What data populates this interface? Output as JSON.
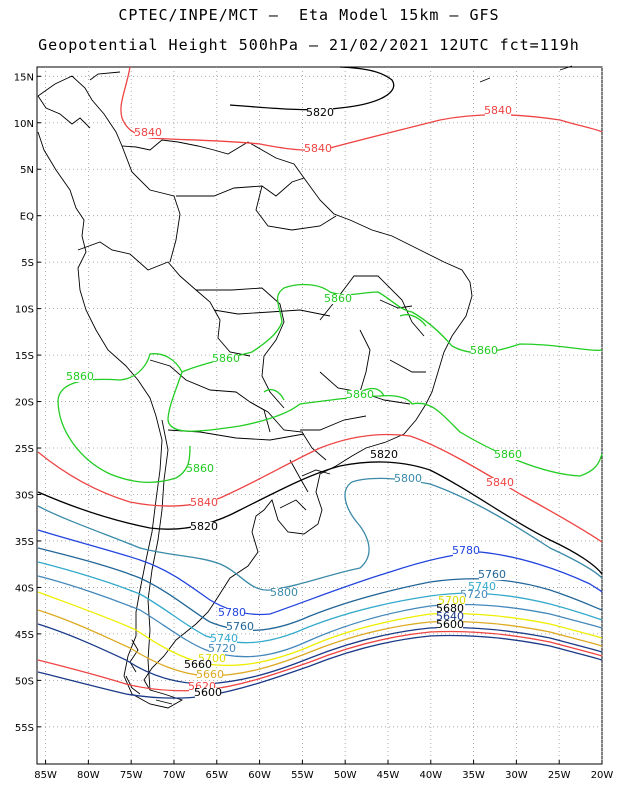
{
  "header": {
    "line1": "CPTEC/INPE/MCT –  Eta Model 15km – GFS",
    "line2": "Geopotential Height 500hPa – 21/02/2021 12UTC fct=119h"
  },
  "map": {
    "lon_range": [
      -86,
      -20
    ],
    "lat_range": [
      -59,
      16
    ],
    "lat_ticks": [
      "15N",
      "10N",
      "5N",
      "EQ",
      "5S",
      "10S",
      "15S",
      "20S",
      "25S",
      "30S",
      "35S",
      "40S",
      "45S",
      "50S",
      "55S"
    ],
    "lon_ticks": [
      "85W",
      "80W",
      "75W",
      "70W",
      "65W",
      "60W",
      "55W",
      "50W",
      "45W",
      "40W",
      "35W",
      "30W",
      "25W",
      "20W"
    ],
    "grid": "dotted"
  },
  "contours": [
    {
      "value": 5860,
      "color": "#22cc22"
    },
    {
      "value": 5840,
      "color": "#ee4444"
    },
    {
      "value": 5820,
      "color": "#000000"
    },
    {
      "value": 5800,
      "color": "#3a8aa8"
    },
    {
      "value": 5780,
      "color": "#2244dd"
    },
    {
      "value": 5760,
      "color": "#226699"
    },
    {
      "value": 5740,
      "color": "#33aacc"
    },
    {
      "value": 5720,
      "color": "#4488bb"
    },
    {
      "value": 5700,
      "color": "#eeee00"
    },
    {
      "value": 5680,
      "color": "#ddaa22"
    },
    {
      "value": 5660,
      "color": "#ee4444"
    },
    {
      "value": 5640,
      "color": "#1a3a88"
    }
  ],
  "contour_labels": [
    {
      "text": "5820",
      "color": "#000000"
    },
    {
      "text": "5840",
      "color": "#ee4444"
    },
    {
      "text": "5840",
      "color": "#ee4444"
    },
    {
      "text": "5840",
      "color": "#ee4444"
    },
    {
      "text": "5860",
      "color": "#22cc22"
    },
    {
      "text": "5860",
      "color": "#22cc22"
    },
    {
      "text": "5860",
      "color": "#22cc22"
    },
    {
      "text": "5860",
      "color": "#22cc22"
    },
    {
      "text": "5860",
      "color": "#22cc22"
    },
    {
      "text": "5860",
      "color": "#22cc22"
    },
    {
      "text": "5860",
      "color": "#22cc22"
    },
    {
      "text": "5820",
      "color": "#000000"
    },
    {
      "text": "5820",
      "color": "#000000"
    },
    {
      "text": "5800",
      "color": "#3a8aa8"
    },
    {
      "text": "5800",
      "color": "#3a8aa8"
    },
    {
      "text": "5840",
      "color": "#ee4444"
    },
    {
      "text": "5840",
      "color": "#ee4444"
    },
    {
      "text": "5780",
      "color": "#2244dd"
    },
    {
      "text": "5780",
      "color": "#2244dd"
    },
    {
      "text": "5760",
      "color": "#226699"
    },
    {
      "text": "5760",
      "color": "#226699"
    },
    {
      "text": "5740",
      "color": "#33aacc"
    },
    {
      "text": "5740",
      "color": "#33aacc"
    },
    {
      "text": "5720",
      "color": "#4488bb"
    },
    {
      "text": "5720",
      "color": "#4488bb"
    },
    {
      "text": "5700",
      "color": "#dddd00"
    },
    {
      "text": "5700",
      "color": "#dddd00"
    },
    {
      "text": "5680",
      "color": "#000000"
    },
    {
      "text": "5660",
      "color": "#ddaa22"
    },
    {
      "text": "5640",
      "color": "#1a3a88"
    },
    {
      "text": "5620",
      "color": "#ee4444"
    },
    {
      "text": "5600",
      "color": "#000000"
    },
    {
      "text": "5660",
      "color": "#000000"
    },
    {
      "text": "5600",
      "color": "#000000"
    }
  ]
}
